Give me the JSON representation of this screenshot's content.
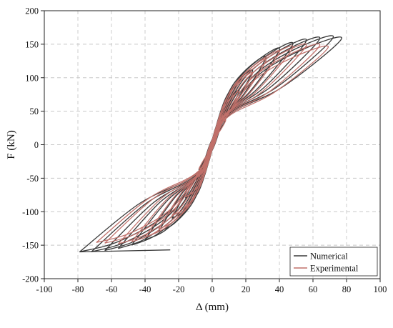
{
  "chart_data": {
    "type": "line",
    "xlabel": "Δ (mm)",
    "ylabel": "F (kN)",
    "xlim": [
      -100,
      100
    ],
    "ylim": [
      -200,
      200
    ],
    "xticks": [
      "-100",
      "-80",
      "-60",
      "-40",
      "-20",
      "0",
      "20",
      "40",
      "60",
      "80",
      "100"
    ],
    "yticks": [
      "200",
      "150",
      "100",
      "50",
      "0",
      "-50",
      "-100",
      "-150",
      "-200"
    ],
    "grid": true,
    "grid_style": "dashed",
    "legend_position": "bottom-right",
    "series": [
      {
        "name": "Numerical",
        "color": "#3a3a3a",
        "loops": [
          {
            "dmax": 8,
            "fmax": 38,
            "dmin": -8,
            "fmin": -38
          },
          {
            "dmax": 16,
            "fmax": 80,
            "dmin": -16,
            "fmin": -80
          },
          {
            "dmax": 24,
            "fmax": 110,
            "dmin": -24,
            "fmin": -110
          },
          {
            "dmax": 32,
            "fmax": 130,
            "dmin": -32,
            "fmin": -130
          },
          {
            "dmax": 40,
            "fmax": 142,
            "dmin": -40,
            "fmin": -142
          },
          {
            "dmax": 48,
            "fmax": 150,
            "dmin": -48,
            "fmin": -150
          },
          {
            "dmax": 56,
            "fmax": 155,
            "dmin": -56,
            "fmin": -155
          },
          {
            "dmax": 64,
            "fmax": 158,
            "dmin": -64,
            "fmin": -158
          },
          {
            "dmax": 72,
            "fmax": 160,
            "dmin": -72,
            "fmin": -160
          },
          {
            "dmax": 77,
            "fmax": 158,
            "dmin": -79,
            "fmin": -160
          }
        ],
        "end": [
          -25,
          -157
        ]
      },
      {
        "name": "Experimental",
        "color": "#c0706a",
        "loops": [
          {
            "dmax": 8,
            "fmax": 36,
            "dmin": -8,
            "fmin": -36
          },
          {
            "dmax": 16,
            "fmax": 78,
            "dmin": -16,
            "fmin": -78
          },
          {
            "dmax": 24,
            "fmax": 106,
            "dmin": -24,
            "fmin": -106
          },
          {
            "dmax": 32,
            "fmax": 126,
            "dmin": -32,
            "fmin": -126
          },
          {
            "dmax": 40,
            "fmax": 138,
            "dmin": -40,
            "fmin": -138
          },
          {
            "dmax": 48,
            "fmax": 145,
            "dmin": -48,
            "fmin": -145
          },
          {
            "dmax": 56,
            "fmax": 148,
            "dmin": -56,
            "fmin": -148
          },
          {
            "dmax": 64,
            "fmax": 148,
            "dmin": -64,
            "fmin": -147
          },
          {
            "dmax": 69,
            "fmax": 145,
            "dmin": -69,
            "fmin": -146
          }
        ]
      }
    ]
  }
}
